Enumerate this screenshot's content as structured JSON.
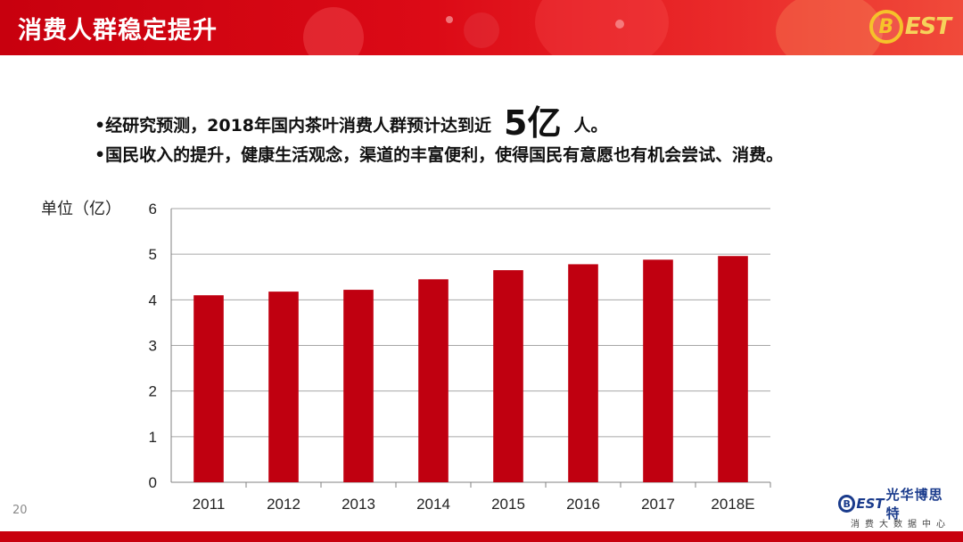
{
  "header": {
    "title": "消费人群稳定提升",
    "logo_letter": "B",
    "logo_rest": "EST"
  },
  "bullets": [
    {
      "before": "•经研究预测，2018年国内茶叶消费人群预计达到近",
      "highlight": "5亿",
      "after": "人。"
    },
    {
      "before": "•国民收入的提升，健康生活观念，渠道的丰富便利，使得国民有意愿也有机会尝试、消费。",
      "highlight": "",
      "after": ""
    }
  ],
  "chart_data": {
    "type": "bar",
    "ylabel": "单位（亿）",
    "categories": [
      "2011",
      "2012",
      "2013",
      "2014",
      "2015",
      "2016",
      "2017",
      "2018E"
    ],
    "values": [
      4.1,
      4.18,
      4.22,
      4.45,
      4.65,
      4.78,
      4.88,
      4.96
    ],
    "ylim": [
      0,
      6
    ],
    "yticks": [
      0,
      1,
      2,
      3,
      4,
      5,
      6
    ],
    "grid": true,
    "bar_color": "#c00010"
  },
  "footer": {
    "page_number": "20",
    "brand_letter": "B",
    "brand_est": "EST",
    "brand_name": "光华博思特",
    "brand_sub": "消费大数据中心"
  }
}
